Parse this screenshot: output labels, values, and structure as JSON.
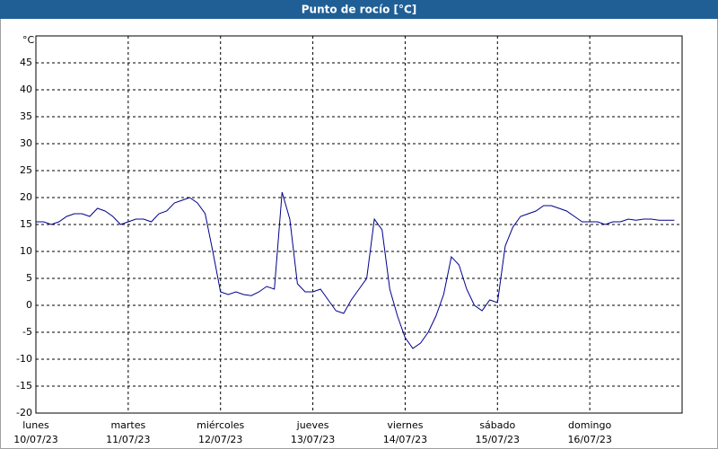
{
  "chart_data": {
    "type": "line",
    "title": "Punto de rocío [°C]",
    "y_label": "°C",
    "ylim": [
      -20,
      50
    ],
    "yticks": [
      -20,
      -15,
      -10,
      -5,
      0,
      5,
      10,
      15,
      20,
      25,
      30,
      35,
      40,
      45
    ],
    "grid": true,
    "x_ticks": [
      {
        "day": "lunes",
        "date": "10/07/23"
      },
      {
        "day": "martes",
        "date": "11/07/23"
      },
      {
        "day": "miércoles",
        "date": "12/07/23"
      },
      {
        "day": "jueves",
        "date": "13/07/23"
      },
      {
        "day": "viernes",
        "date": "14/07/23"
      },
      {
        "day": "sábado",
        "date": "15/07/23"
      },
      {
        "day": "domingo",
        "date": "16/07/23"
      }
    ],
    "color": "#00008b",
    "values": [
      15.5,
      15.5,
      15,
      15.5,
      16.5,
      17,
      17,
      16.5,
      18,
      17.5,
      16.5,
      15,
      15.5,
      16,
      16,
      15.5,
      17,
      17.5,
      19,
      19.5,
      20,
      19,
      17,
      10,
      2.5,
      2,
      2.5,
      2,
      1.8,
      2.5,
      3.5,
      3,
      21,
      16,
      4,
      2.5,
      2.5,
      3,
      1,
      -1,
      -1.5,
      1,
      3,
      5,
      16,
      14,
      3,
      -2,
      -6,
      -8,
      -7,
      -5,
      -2,
      2,
      9,
      7.5,
      3,
      0,
      -1,
      1,
      0.5,
      11,
      14.5,
      16.5,
      17,
      17.5,
      18.5,
      18.5,
      18,
      17.5,
      16.5,
      15.5,
      15.5,
      15.5,
      15,
      15.5,
      15.5,
      16,
      15.8,
      16,
      16,
      15.8,
      15.8,
      15.8
    ]
  }
}
